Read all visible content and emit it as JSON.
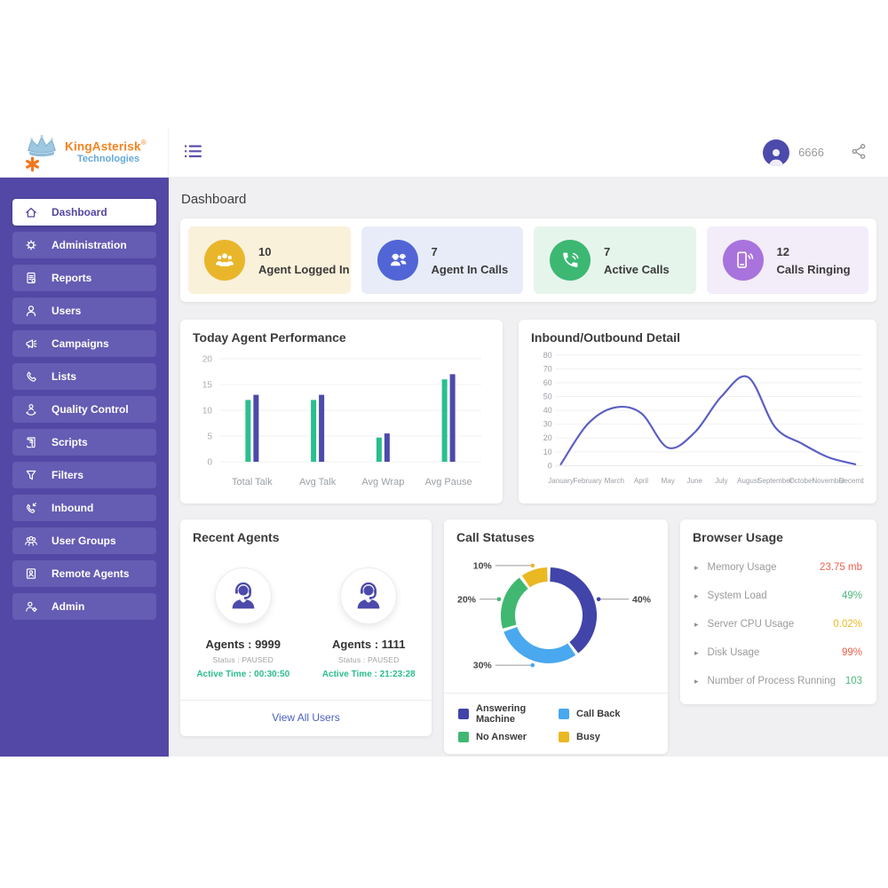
{
  "brand": {
    "name": "KingAsterisk",
    "reg": "®",
    "tagline": "Technologies"
  },
  "header": {
    "user_id": "6666"
  },
  "page": {
    "title": "Dashboard"
  },
  "sidebar": {
    "items": [
      {
        "label": "Dashboard",
        "active": true
      },
      {
        "label": "Administration",
        "active": false
      },
      {
        "label": "Reports",
        "active": false
      },
      {
        "label": "Users",
        "active": false
      },
      {
        "label": "Campaigns",
        "active": false
      },
      {
        "label": "Lists",
        "active": false
      },
      {
        "label": "Quality Control",
        "active": false
      },
      {
        "label": "Scripts",
        "active": false
      },
      {
        "label": "Filters",
        "active": false
      },
      {
        "label": "Inbound",
        "active": false
      },
      {
        "label": "User Groups",
        "active": false
      },
      {
        "label": "Remote Agents",
        "active": false
      },
      {
        "label": "Admin",
        "active": false
      }
    ]
  },
  "stats": [
    {
      "value": "10",
      "label": "Agent Logged In",
      "bg": "#faf1da",
      "circle": "#e9b62b"
    },
    {
      "value": "7",
      "label": "Agent In Calls",
      "bg": "#e8ecf8",
      "circle": "#5165d6"
    },
    {
      "value": "7",
      "label": "Active Calls",
      "bg": "#e6f5ec",
      "circle": "#3cb873"
    },
    {
      "value": "12",
      "label": "Calls Ringing",
      "bg": "#f3ecf9",
      "circle": "#a873dc"
    }
  ],
  "chart_data": [
    {
      "type": "bar",
      "title": "Today Agent Performance",
      "categories": [
        "Total Talk",
        "Avg Talk",
        "Avg Wrap",
        "Avg Pause"
      ],
      "series": [
        {
          "color": "#2abf8e",
          "values": [
            12,
            12,
            4.7,
            16
          ]
        },
        {
          "color": "#4c4aab",
          "values": [
            13,
            13,
            5.5,
            17
          ]
        }
      ],
      "ylim": [
        0,
        20
      ],
      "yticks": [
        0,
        5,
        10,
        15,
        20
      ],
      "grid": true
    },
    {
      "type": "line",
      "title": "Inbound/Outbound Detail",
      "x": [
        "January",
        "February",
        "March",
        "April",
        "May",
        "June",
        "July",
        "August",
        "September",
        "October",
        "November",
        "December"
      ],
      "values": [
        1,
        30,
        42,
        38,
        13,
        24,
        50,
        64,
        28,
        16,
        6,
        1
      ],
      "ylim": [
        0,
        80
      ],
      "yticks": [
        0,
        10,
        20,
        30,
        40,
        50,
        60,
        70,
        80
      ],
      "color": "#5b5fc2",
      "grid": true
    },
    {
      "type": "donut",
      "title": "Call Statuses",
      "slices": [
        {
          "label": "Answering Machine",
          "value": 40,
          "color": "#4144a8"
        },
        {
          "label": "Call Back",
          "value": 30,
          "color": "#49a8ee"
        },
        {
          "label": "No Answer",
          "value": 20,
          "color": "#41b871"
        },
        {
          "label": "Busy",
          "value": 10,
          "color": "#eab822"
        }
      ],
      "legend_position": "bottom"
    }
  ],
  "recent_agents": {
    "title": "Recent Agents",
    "active_color": "#2dbd8e",
    "agents": [
      {
        "name": "Agents : 9999",
        "status": "Status : PAUSED",
        "active_time": "Active Time : 00:30:50"
      },
      {
        "name": "Agents : 1111",
        "status": "Status : PAUSED",
        "active_time": "Active Time : 21:23:28"
      }
    ],
    "footer_link": "View All Users"
  },
  "browser_usage": {
    "title": "Browser Usage",
    "rows": [
      {
        "label": "Memory Usage",
        "value": "23.75 mb",
        "color": "#f0614e"
      },
      {
        "label": "System Load",
        "value": "49%",
        "color": "#4db97d"
      },
      {
        "label": "Server CPU Usage",
        "value": "0.02%",
        "color": "#eab822"
      },
      {
        "label": "Disk Usage",
        "value": "99%",
        "color": "#f0614e"
      },
      {
        "label": "Number of Process Running",
        "value": "103",
        "color": "#4db97d"
      }
    ]
  },
  "colors": {
    "sidebar": "#5348a5",
    "sidebar_item": "#655cb3",
    "content_bg": "#f0f0f2",
    "accent": "#4c4aab",
    "link": "#4a5fc1"
  }
}
